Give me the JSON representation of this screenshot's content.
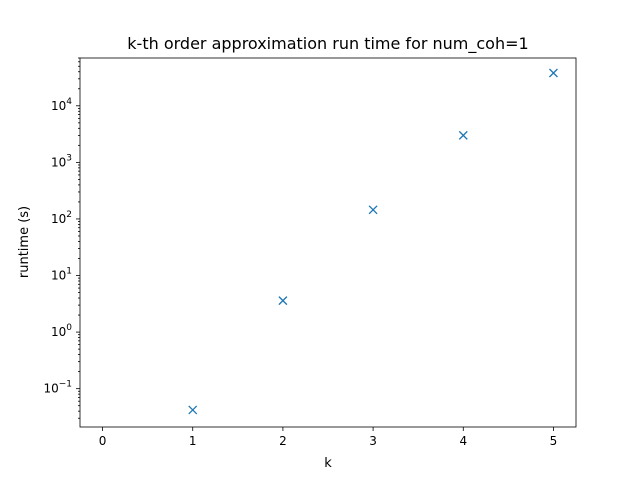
{
  "chart_data": {
    "type": "scatter",
    "title": "k-th order approximation run time for num_coh=1",
    "xlabel": "k",
    "ylabel": "runtime (s)",
    "yscale": "log",
    "xlim": [
      -0.25,
      5.25
    ],
    "ylim": [
      0.021,
      70000
    ],
    "grid": false,
    "marker": "x",
    "color": "#1f77b4",
    "x_ticks": [
      0,
      1,
      2,
      3,
      4,
      5
    ],
    "y_ticks": [
      {
        "value": 0.1,
        "base": "10",
        "exp": "−1"
      },
      {
        "value": 1,
        "base": "10",
        "exp": "0"
      },
      {
        "value": 10,
        "base": "10",
        "exp": "1"
      },
      {
        "value": 100,
        "base": "10",
        "exp": "2"
      },
      {
        "value": 1000,
        "base": "10",
        "exp": "3"
      },
      {
        "value": 10000,
        "base": "10",
        "exp": "4"
      }
    ],
    "x": [
      1,
      2,
      3,
      4,
      5
    ],
    "y": [
      0.042,
      3.6,
      145,
      3000,
      38000
    ]
  }
}
